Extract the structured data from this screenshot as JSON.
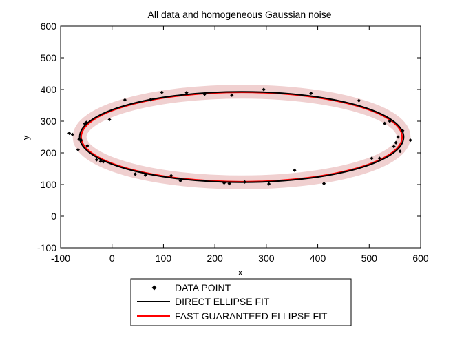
{
  "chart_data": {
    "type": "scatter",
    "title": "All data and homogeneous Gaussian noise",
    "xlabel": "x",
    "ylabel": "y",
    "xlim": [
      -100,
      600
    ],
    "ylim": [
      -100,
      600
    ],
    "xticks": [
      "-100",
      "0",
      "100",
      "200",
      "300",
      "400",
      "500",
      "600"
    ],
    "yticks": [
      "-100",
      "0",
      "100",
      "200",
      "300",
      "400",
      "500",
      "600"
    ],
    "grid": false,
    "legend_position": "below plot",
    "colors": {
      "data_point": "#000000",
      "direct_fit": "#000000",
      "fast_fit": "#ff0000",
      "noise_band": "#f0d0d0"
    },
    "series": [
      {
        "name": "DATA POINT",
        "kind": "points",
        "points": [
          [
            -83,
            262
          ],
          [
            -77,
            258
          ],
          [
            -66,
            210
          ],
          [
            -64,
            243
          ],
          [
            -60,
            240
          ],
          [
            -53,
            292
          ],
          [
            -50,
            296
          ],
          [
            -48,
            222
          ],
          [
            -30,
            178
          ],
          [
            -22,
            173
          ],
          [
            -17,
            172
          ],
          [
            -5,
            305
          ],
          [
            25,
            367
          ],
          [
            45,
            133
          ],
          [
            65,
            130
          ],
          [
            75,
            368
          ],
          [
            97,
            391
          ],
          [
            115,
            128
          ],
          [
            133,
            112
          ],
          [
            145,
            390
          ],
          [
            180,
            385
          ],
          [
            218,
            105
          ],
          [
            228,
            103
          ],
          [
            233,
            382
          ],
          [
            258,
            108
          ],
          [
            295,
            400
          ],
          [
            305,
            102
          ],
          [
            355,
            145
          ],
          [
            387,
            388
          ],
          [
            412,
            103
          ],
          [
            480,
            365
          ],
          [
            505,
            183
          ],
          [
            520,
            183
          ],
          [
            530,
            293
          ],
          [
            540,
            300
          ],
          [
            548,
            220
          ],
          [
            552,
            232
          ],
          [
            556,
            250
          ],
          [
            560,
            205
          ],
          [
            565,
            270
          ],
          [
            580,
            240
          ]
        ]
      },
      {
        "name": "DIRECT ELLIPSE FIT",
        "kind": "ellipse",
        "cx": 252,
        "cy": 250,
        "rx": 315,
        "ry": 143
      },
      {
        "name": "FAST GUARANTEED ELLIPSE FIT",
        "kind": "ellipse",
        "cx": 252,
        "cy": 250,
        "rx": 312,
        "ry": 141
      }
    ]
  }
}
